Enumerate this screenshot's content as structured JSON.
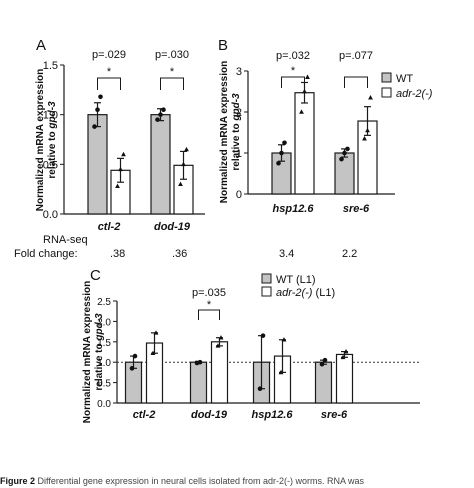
{
  "panel_letters": [
    "A",
    "B",
    "C"
  ],
  "rnaseq": {
    "label1": "RNA-seq",
    "label2": "Fold change:",
    "values": [
      ".38",
      ".36",
      "3.4",
      "2.2"
    ]
  },
  "caption_fragment": "Differential gene expression in neural cells isolated from adr-2(-) worms. RNA was",
  "caption_label": "Figure 2",
  "colors": {
    "wt": "#c4c4c4",
    "mutant": "#ffffff",
    "outline": "#1a1a1a"
  },
  "chart_data": [
    {
      "type": "bar",
      "panel": "A",
      "ylabel_line1": "Normalized mRNA expression",
      "ylabel_line2": "relative to ",
      "ylabel_gene": "gpd-3",
      "categories": [
        "ctl-2",
        "dod-19"
      ],
      "ylim": [
        0,
        1.5
      ],
      "yticks": [
        "0.0",
        "0.5",
        "1.0",
        "1.5"
      ],
      "series": [
        {
          "values": [
            1.0,
            1.0
          ],
          "err": [
            0.12,
            0.06
          ],
          "points": [
            [
              0.88,
              1.05,
              1.18
            ],
            [
              0.95,
              1.0,
              1.05
            ]
          ]
        },
        {
          "values": [
            0.44,
            0.49
          ],
          "err": [
            0.12,
            0.14
          ],
          "points": [
            [
              0.28,
              0.45,
              0.6
            ],
            [
              0.3,
              0.5,
              0.65
            ]
          ]
        }
      ],
      "pvalues": [
        "p=.029",
        "p=.030"
      ],
      "stars": [
        "*",
        "*"
      ]
    },
    {
      "type": "bar",
      "panel": "B",
      "ylabel_line1": "Normalized mRNA expression",
      "ylabel_line2": "relative to ",
      "ylabel_gene": "gpd-3",
      "categories": [
        "hsp12.6",
        "sre-6"
      ],
      "ylim": [
        0,
        3
      ],
      "yticks": [
        "0",
        "1",
        "2",
        "3"
      ],
      "series": [
        {
          "name": "WT",
          "values": [
            1.0,
            1.0
          ],
          "err": [
            0.2,
            0.1
          ],
          "points": [
            [
              0.75,
              1.0,
              1.25
            ],
            [
              0.85,
              1.0,
              1.1
            ]
          ]
        },
        {
          "name": "adr-2(-)",
          "values": [
            2.47,
            1.78
          ],
          "err": [
            0.25,
            0.35
          ],
          "points": [
            [
              2.0,
              2.5,
              2.85
            ],
            [
              1.35,
              1.55,
              2.35
            ]
          ]
        }
      ],
      "pvalues": [
        "p=.032",
        "p=.077"
      ],
      "stars": [
        "*",
        ""
      ]
    },
    {
      "type": "bar",
      "panel": "C",
      "ylabel_line1": "Normalized mRNA expression",
      "ylabel_line2": "relative to ",
      "ylabel_gene": "gpd-3",
      "categories": [
        "ctl-2",
        "dod-19",
        "hsp12.6",
        "sre-6"
      ],
      "ylim": [
        0,
        2.5
      ],
      "yticks": [
        "0.0",
        "0.5",
        "1.0",
        "1.5",
        "2.0",
        "2.5"
      ],
      "reference_line": 1.0,
      "series": [
        {
          "name": "WT (L1)",
          "values": [
            1.0,
            1.0,
            1.0,
            1.0
          ],
          "err": [
            0.15,
            0.02,
            0.65,
            0.05
          ],
          "points": [
            [
              0.85,
              1.15
            ],
            [
              0.98,
              1.0
            ],
            [
              0.35,
              1.65
            ],
            [
              0.95,
              1.05
            ]
          ]
        },
        {
          "name": "adr-2(-) (L1)",
          "values": [
            1.47,
            1.5,
            1.15,
            1.19
          ],
          "err": [
            0.25,
            0.1,
            0.4,
            0.07
          ],
          "points": [
            [
              1.22,
              1.72
            ],
            [
              1.4,
              1.6
            ],
            [
              0.75,
              1.55
            ],
            [
              1.12,
              1.26
            ]
          ]
        }
      ],
      "pvalues": [
        "",
        "p=.035",
        "",
        ""
      ],
      "stars": [
        "",
        "*",
        "",
        ""
      ]
    }
  ]
}
